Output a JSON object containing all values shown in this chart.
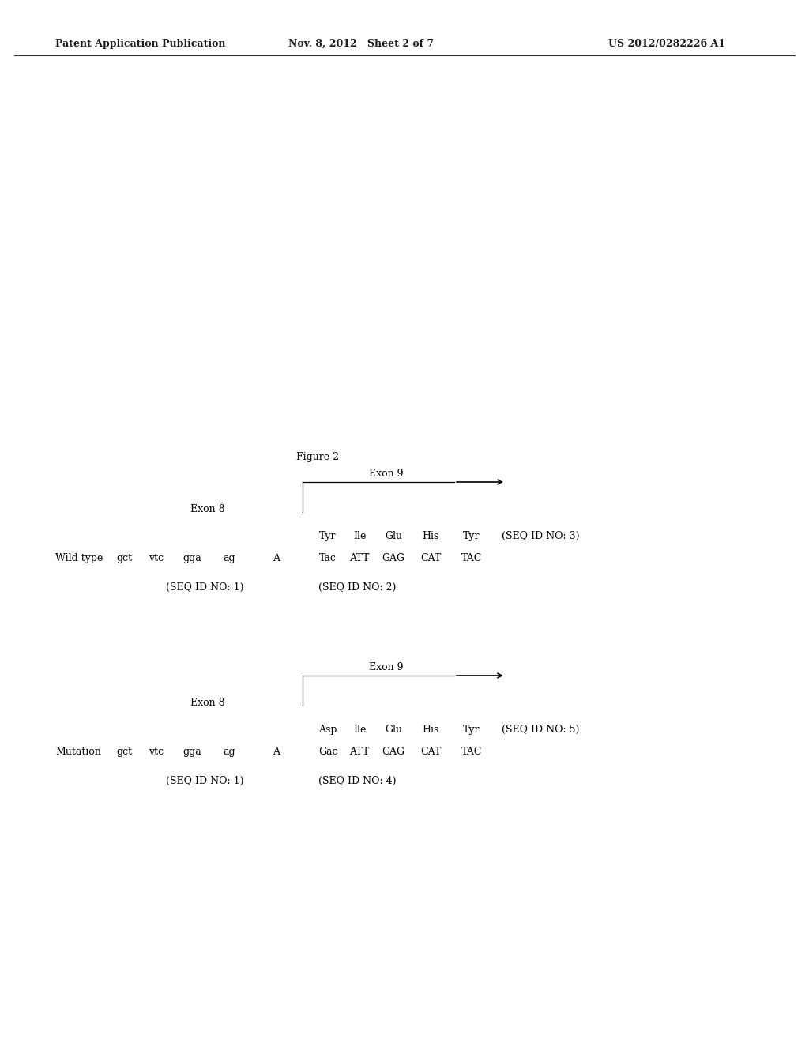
{
  "bg_color": "#ffffff",
  "header_left": "Patent Application Publication",
  "header_mid": "Nov. 8, 2012   Sheet 2 of 7",
  "header_right": "US 2012/0282226 A1",
  "figure_label": "Figure 2",
  "wt_label": "Wild type",
  "mut_label": "Mutation",
  "exon8_label": "Exon 8",
  "exon9_label": "Exon 9",
  "wt_seq_id1": "(SEQ ID NO: 1)",
  "wt_seq_id2": "(SEQ ID NO: 2)",
  "wt_seq_id3": "(SEQ ID NO: 3)",
  "mut_seq_id1": "(SEQ ID NO: 1)",
  "mut_seq_id4": "(SEQ ID NO: 4)",
  "mut_seq_id5": "(SEQ ID NO: 5)",
  "wt_dna8": [
    "gct",
    "vtc",
    "gga",
    "ag"
  ],
  "wt_dna_A": "A",
  "wt_dna9": [
    "Tac",
    "ATT",
    "GAG",
    "CAT",
    "TAC"
  ],
  "wt_aa9": [
    "Tyr",
    "Ile",
    "Glu",
    "His",
    "Tyr"
  ],
  "mut_dna8": [
    "gct",
    "vtc",
    "gga",
    "ag"
  ],
  "mut_dna_A": "A",
  "mut_dna9": [
    "Gac",
    "ATT",
    "GAG",
    "CAT",
    "TAC"
  ],
  "mut_aa9": [
    "Asp",
    "Ile",
    "Glu",
    "His",
    "Tyr"
  ]
}
